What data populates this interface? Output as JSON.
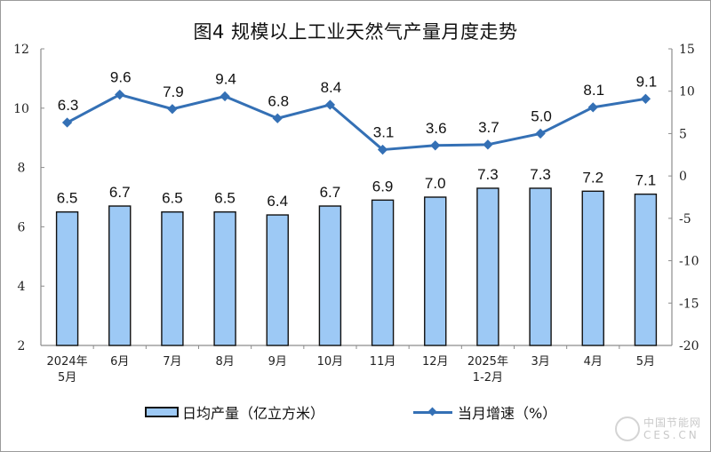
{
  "title": "图4  规模以上工业天然气产量月度走势",
  "legend": {
    "bar_label": "日均产量（亿立方米）",
    "line_label": "当月增速（%）"
  },
  "watermark": {
    "line1": "中国节能网",
    "line2": "CES.CN"
  },
  "colors": {
    "bar_fill": "#9dc9f5",
    "bar_stroke": "#111111",
    "line": "#3470b5"
  },
  "chart_data": {
    "type": "bar+line",
    "title": "图4  规模以上工业天然气产量月度走势",
    "categories": [
      "2024年\n5月",
      "6月",
      "7月",
      "8月",
      "9月",
      "10月",
      "11月",
      "12月",
      "2025年\n1-2月",
      "3月",
      "4月",
      "5月"
    ],
    "series": [
      {
        "name": "日均产量（亿立方米）",
        "type": "bar",
        "axis": "left",
        "values": [
          6.5,
          6.7,
          6.5,
          6.5,
          6.4,
          6.7,
          6.9,
          7.0,
          7.3,
          7.3,
          7.2,
          7.1
        ]
      },
      {
        "name": "当月增速（%）",
        "type": "line",
        "axis": "right",
        "values": [
          6.3,
          9.6,
          7.9,
          9.4,
          6.8,
          8.4,
          3.1,
          3.6,
          3.7,
          5.0,
          8.1,
          9.1
        ]
      }
    ],
    "left_axis": {
      "ylim": [
        2,
        12
      ],
      "ticks": [
        2,
        4,
        6,
        8,
        10,
        12
      ]
    },
    "right_axis": {
      "ylim": [
        -20,
        15
      ],
      "ticks": [
        -20,
        -15,
        -10,
        -5,
        0,
        5,
        10,
        15
      ]
    },
    "xlabel": "",
    "ylabel": "",
    "grid": false,
    "legend_position": "bottom"
  }
}
